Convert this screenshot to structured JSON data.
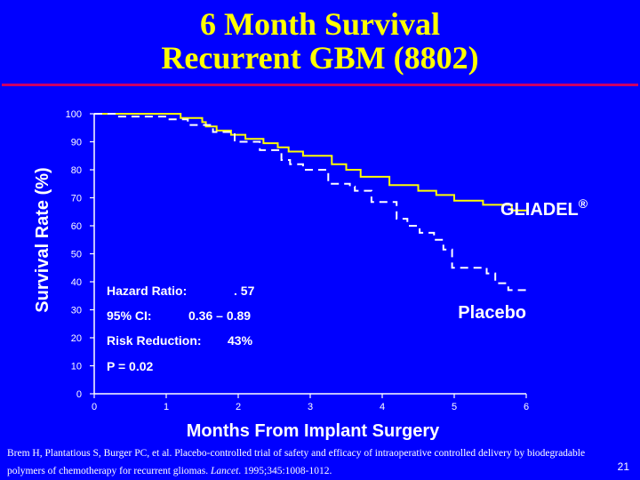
{
  "slide": {
    "title_line1": "6 Month Survival",
    "title_line2": "Recurrent GBM (8802)",
    "citation_part1": "Brem H, Plantatious S, Burger PC, et al. Placebo-controlled trial of safety and efficacy of intraoperative controlled delivery by biodegradable polymers of chemotherapy for recurrent gliomas. ",
    "citation_journal": "Lancet",
    "citation_part2": ". 1995;345:1008-1012.",
    "page_number": "21"
  },
  "colors": {
    "background": "#0000ff",
    "title": "#ffff00",
    "rule": "#cc0066",
    "text": "#ffffff",
    "gliadel_line": "#ffff00",
    "placebo_line": "#ffffff"
  },
  "chart_data": {
    "type": "line",
    "title": "",
    "xlabel": "Months From Implant Surgery",
    "ylabel": "Survival Rate (%)",
    "xlim": [
      0,
      6
    ],
    "ylim": [
      0,
      100
    ],
    "x_ticks": [
      "0",
      "1",
      "2",
      "3",
      "4",
      "5",
      "6"
    ],
    "y_ticks": [
      "0",
      "10",
      "20",
      "30",
      "40",
      "50",
      "60",
      "70",
      "80",
      "90",
      "100"
    ],
    "series": [
      {
        "name": "GLIADEL",
        "style": "solid",
        "x": [
          0,
          1.2,
          1.2,
          1.5,
          1.5,
          1.55,
          1.55,
          1.7,
          1.7,
          1.9,
          1.9,
          2.1,
          2.1,
          2.35,
          2.35,
          2.55,
          2.55,
          2.7,
          2.7,
          2.9,
          2.9,
          3.3,
          3.3,
          3.5,
          3.5,
          3.7,
          3.7,
          4.1,
          4.1,
          4.5,
          4.5,
          4.75,
          4.75,
          5.0,
          5.0,
          5.4,
          5.4,
          5.8,
          5.8,
          6.0
        ],
        "y": [
          100,
          100,
          98.5,
          98.5,
          97,
          97,
          95.5,
          95.5,
          94,
          94,
          92.5,
          92.5,
          91,
          91,
          89.5,
          89.5,
          88,
          88,
          86.5,
          86.5,
          85,
          85,
          82,
          82,
          80,
          80,
          77.5,
          77.5,
          74.5,
          74.5,
          72.5,
          72.5,
          71,
          71,
          69,
          69,
          67.5,
          67.5,
          65.5,
          65.5
        ]
      },
      {
        "name": "Placebo",
        "style": "dashed",
        "x": [
          0,
          0.3,
          0.3,
          1.0,
          1.0,
          1.3,
          1.3,
          1.65,
          1.65,
          1.95,
          1.95,
          2.3,
          2.3,
          2.6,
          2.6,
          2.72,
          2.72,
          2.9,
          2.9,
          3.25,
          3.25,
          3.55,
          3.55,
          3.62,
          3.62,
          3.85,
          3.85,
          4.2,
          4.2,
          4.35,
          4.35,
          4.52,
          4.52,
          4.72,
          4.72,
          4.85,
          4.85,
          4.97,
          4.97,
          5.45,
          5.45,
          5.57,
          5.57,
          5.75,
          5.75,
          6.0
        ],
        "y": [
          100,
          100,
          99,
          99,
          98,
          98,
          96,
          96,
          93.5,
          93.5,
          90,
          90,
          87,
          87,
          83.5,
          83.5,
          82,
          82,
          80,
          80,
          75,
          75,
          74,
          74,
          72.5,
          72.5,
          68.5,
          68.5,
          62.5,
          62.5,
          60,
          60,
          57.5,
          57.5,
          55,
          55,
          51.5,
          51.5,
          45,
          45,
          43,
          43,
          39.5,
          39.5,
          37,
          37
        ]
      }
    ],
    "grid": false,
    "labels": {
      "gliadel": "GLIADEL",
      "gliadel_mark": "®",
      "placebo": "Placebo"
    },
    "stats": {
      "hazard_label": "Hazard Ratio:",
      "hazard_value": ". 57",
      "ci_label": "95% CI:",
      "ci_value": "0.36 – 0.89",
      "rr_label": "Risk Reduction:",
      "rr_value": "43%",
      "p_value": "P = 0.02"
    }
  }
}
